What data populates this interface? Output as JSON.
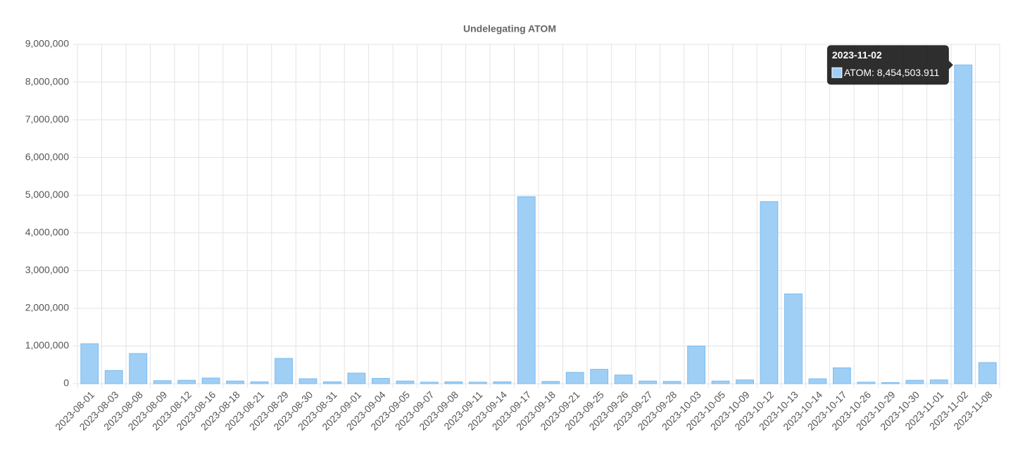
{
  "chart_data": {
    "type": "bar",
    "title": "Undelegating ATOM",
    "categories": [
      "2023-08-01",
      "2023-08-03",
      "2023-08-08",
      "2023-08-09",
      "2023-08-12",
      "2023-08-16",
      "2023-08-18",
      "2023-08-21",
      "2023-08-29",
      "2023-08-30",
      "2023-08-31",
      "2023-09-01",
      "2023-09-04",
      "2023-09-05",
      "2023-09-07",
      "2023-09-08",
      "2023-09-11",
      "2023-09-14",
      "2023-09-17",
      "2023-09-18",
      "2023-09-21",
      "2023-09-25",
      "2023-09-26",
      "2023-09-27",
      "2023-09-28",
      "2023-10-03",
      "2023-10-05",
      "2023-10-09",
      "2023-10-12",
      "2023-10-13",
      "2023-10-14",
      "2023-10-17",
      "2023-10-26",
      "2023-10-29",
      "2023-10-30",
      "2023-11-01",
      "2023-11-02",
      "2023-11-08"
    ],
    "values": [
      1060000,
      350000,
      800000,
      80000,
      90000,
      150000,
      70000,
      50000,
      670000,
      130000,
      50000,
      280000,
      140000,
      70000,
      40000,
      50000,
      40000,
      50000,
      4960000,
      60000,
      300000,
      380000,
      230000,
      70000,
      60000,
      1000000,
      70000,
      100000,
      4830000,
      2380000,
      130000,
      420000,
      40000,
      30000,
      90000,
      100000,
      8454503.911,
      560000
    ],
    "color": "#9fcff5",
    "border_color": "#7cbbee",
    "ylim": [
      0,
      9000000
    ],
    "yticks": [
      0,
      {
        "value": 1000000,
        "label": "1,000,000"
      },
      {
        "value": 2000000,
        "label": "2,000,000"
      },
      {
        "value": 3000000,
        "label": "3,000,000"
      },
      {
        "value": 4000000,
        "label": "4,000,000"
      },
      {
        "value": 5000000,
        "label": "5,000,000"
      },
      {
        "value": 6000000,
        "label": "6,000,000"
      },
      {
        "value": 7000000,
        "label": "7,000,000"
      },
      {
        "value": 8000000,
        "label": "8,000,000"
      },
      {
        "value": 9000000,
        "label": "9,000,000"
      }
    ],
    "grid": true,
    "tooltip": {
      "index": 36,
      "label": "ATOM: 8,454,503.911"
    }
  }
}
